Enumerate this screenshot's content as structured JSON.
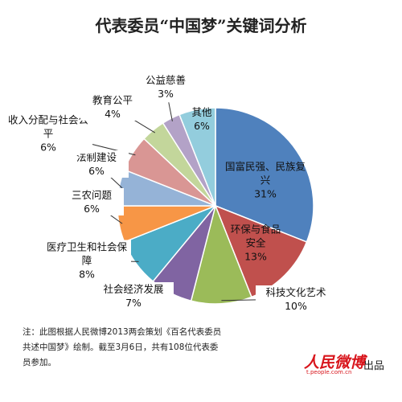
{
  "chart_data": {
    "type": "pie",
    "title": "代表委员“中国梦”关键词分析",
    "categories": [
      "国富民强、民族复兴",
      "环保与食品安全",
      "科技文化艺术",
      "社会经济发展",
      "医疗卫生和社会保障",
      "三农问题",
      "法制建设",
      "收入分配与社会公平",
      "教育公平",
      "公益慈善",
      "其他"
    ],
    "values": [
      31,
      13,
      10,
      7,
      8,
      6,
      6,
      6,
      4,
      3,
      6
    ],
    "value_labels": [
      "31%",
      "13%",
      "10%",
      "7%",
      "8%",
      "6%",
      "6%",
      "6%",
      "4%",
      "3%",
      "6%"
    ],
    "colors": [
      "#4f81bd",
      "#c0504d",
      "#9bbb59",
      "#8064a2",
      "#4bacc6",
      "#f79646",
      "#95b3d7",
      "#d99694",
      "#c3d69b",
      "#b3a2c7",
      "#93cddd"
    ],
    "note": "注：此图根据人民微博2013两会策划《百名代表委员共述中国梦》绘制。截至3月6日，共有108位代表委员参加。",
    "logo": {
      "name": "人民微博",
      "url": "t.people.com.cn"
    },
    "credit": "出品"
  }
}
